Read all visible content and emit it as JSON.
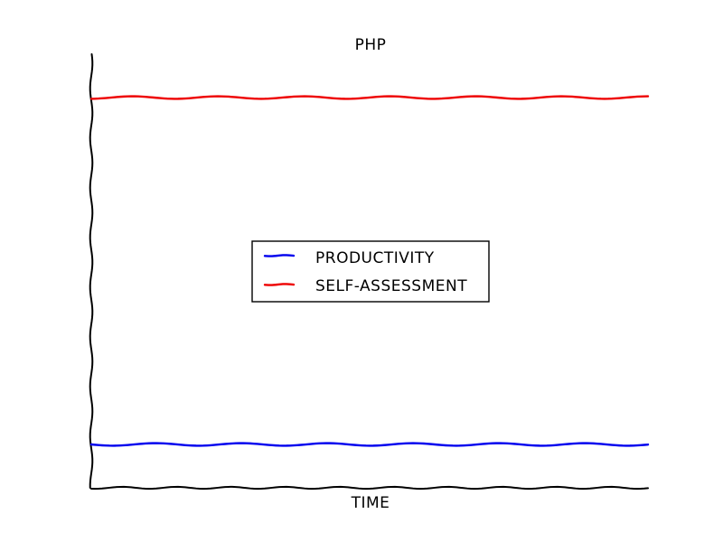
{
  "chart_data": {
    "type": "line",
    "title": "PHP",
    "xlabel": "TIME",
    "ylabel": "",
    "x_ticks": false,
    "y_ticks": false,
    "grid": false,
    "legend_placement": "center",
    "style": "xkcd hand-drawn",
    "x": [
      0,
      1
    ],
    "ylim": [
      0,
      1
    ],
    "series": [
      {
        "name": "PRODUCTIVITY",
        "color": "#0000ee",
        "values": [
          0.1,
          0.1
        ]
      },
      {
        "name": "SELF-ASSESSMENT",
        "color": "#ee0000",
        "values": [
          0.9,
          0.9
        ]
      }
    ]
  }
}
